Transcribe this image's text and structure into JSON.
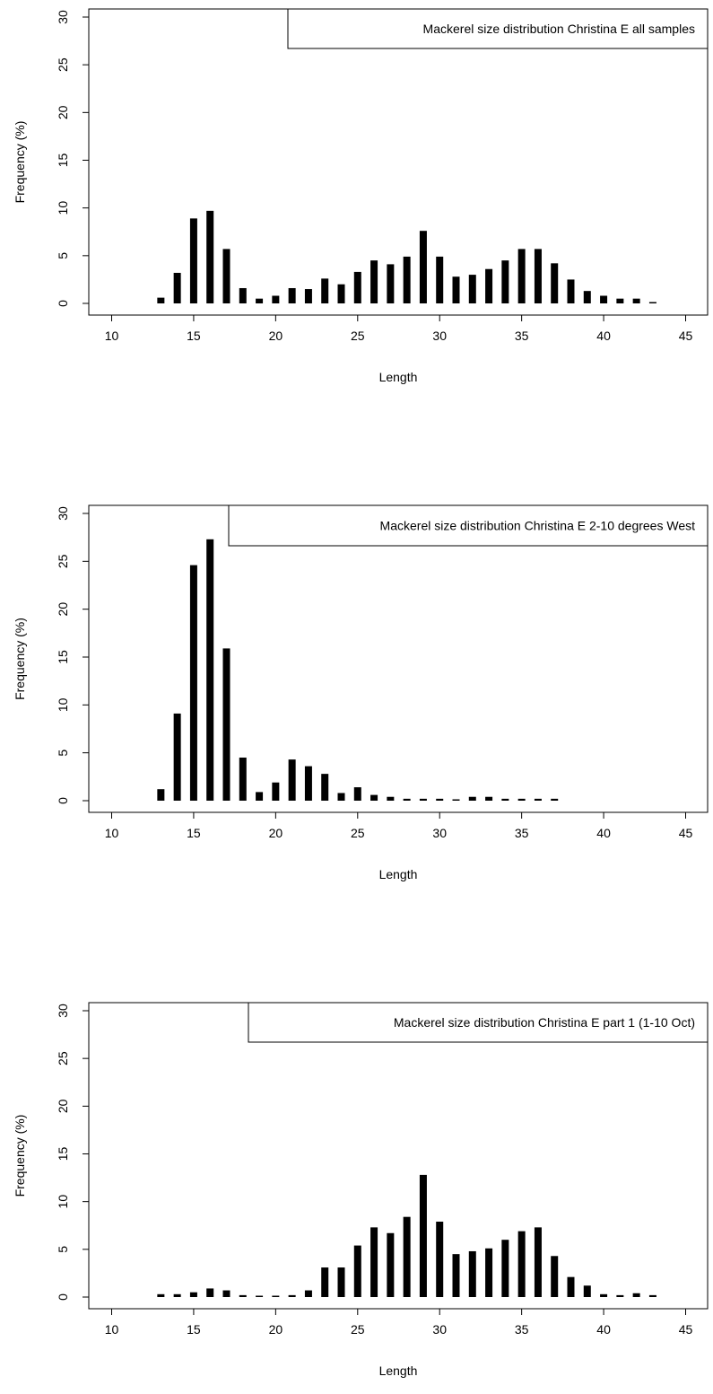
{
  "chart_data": [
    {
      "type": "bar",
      "legend_text": "Mackerel size distribution Christina E all samples",
      "xlabel": "Length",
      "ylabel": "Frequency (%)",
      "xlim": [
        10,
        45
      ],
      "ylim": [
        0,
        30
      ],
      "x_ticks": [
        10,
        15,
        20,
        25,
        30,
        35,
        40,
        45
      ],
      "y_ticks": [
        0,
        5,
        10,
        15,
        20,
        25,
        30
      ],
      "x": [
        13,
        14,
        15,
        16,
        17,
        18,
        19,
        20,
        21,
        22,
        23,
        24,
        25,
        26,
        27,
        28,
        29,
        30,
        31,
        32,
        33,
        34,
        35,
        36,
        37,
        38,
        39,
        40,
        41,
        42,
        43
      ],
      "values": [
        0.6,
        3.2,
        8.9,
        9.7,
        5.7,
        1.6,
        0.5,
        0.8,
        1.6,
        1.5,
        2.6,
        2.0,
        3.3,
        4.5,
        4.1,
        4.9,
        7.6,
        4.9,
        2.8,
        3.0,
        3.6,
        4.5,
        5.7,
        5.7,
        4.2,
        2.5,
        1.3,
        0.8,
        0.5,
        0.5,
        0.1
      ],
      "legend_position": "top-right",
      "grid": false,
      "bar_color": "#000000"
    },
    {
      "type": "bar",
      "legend_text": "Mackerel size distribution Christina E 2-10 degrees West",
      "xlabel": "Length",
      "ylabel": "Frequency (%)",
      "xlim": [
        10,
        45
      ],
      "ylim": [
        0,
        30
      ],
      "x_ticks": [
        10,
        15,
        20,
        25,
        30,
        35,
        40,
        45
      ],
      "y_ticks": [
        0,
        5,
        10,
        15,
        20,
        25,
        30
      ],
      "x": [
        13,
        14,
        15,
        16,
        17,
        18,
        19,
        20,
        21,
        22,
        23,
        24,
        25,
        26,
        27,
        28,
        29,
        30,
        31,
        32,
        33,
        34,
        35,
        36,
        37
      ],
      "values": [
        1.2,
        9.1,
        24.6,
        27.3,
        15.9,
        4.5,
        0.9,
        1.9,
        4.3,
        3.6,
        2.8,
        0.8,
        1.4,
        0.6,
        0.4,
        0.2,
        0.2,
        0.2,
        0.1,
        0.4,
        0.4,
        0.2,
        0.2,
        0.2,
        0.2
      ],
      "legend_position": "top-right",
      "grid": false,
      "bar_color": "#000000"
    },
    {
      "type": "bar",
      "legend_text": "Mackerel size distribution Christina E part 1 (1-10 Oct)",
      "xlabel": "Length",
      "ylabel": "Frequency (%)",
      "xlim": [
        10,
        45
      ],
      "ylim": [
        0,
        30
      ],
      "x_ticks": [
        10,
        15,
        20,
        25,
        30,
        35,
        40,
        45
      ],
      "y_ticks": [
        0,
        5,
        10,
        15,
        20,
        25,
        30
      ],
      "x": [
        13,
        14,
        15,
        16,
        17,
        18,
        19,
        20,
        21,
        22,
        23,
        24,
        25,
        26,
        27,
        28,
        29,
        30,
        31,
        32,
        33,
        34,
        35,
        36,
        37,
        38,
        39,
        40,
        41,
        42,
        43
      ],
      "values": [
        0.3,
        0.3,
        0.5,
        0.9,
        0.7,
        0.2,
        0.1,
        0.1,
        0.2,
        0.7,
        3.1,
        3.1,
        5.4,
        7.3,
        6.7,
        8.4,
        12.8,
        7.9,
        4.5,
        4.8,
        5.1,
        6.0,
        6.9,
        7.3,
        4.3,
        2.1,
        1.2,
        0.3,
        0.2,
        0.4,
        0.2
      ],
      "legend_position": "top-right",
      "grid": false,
      "bar_color": "#000000"
    }
  ]
}
